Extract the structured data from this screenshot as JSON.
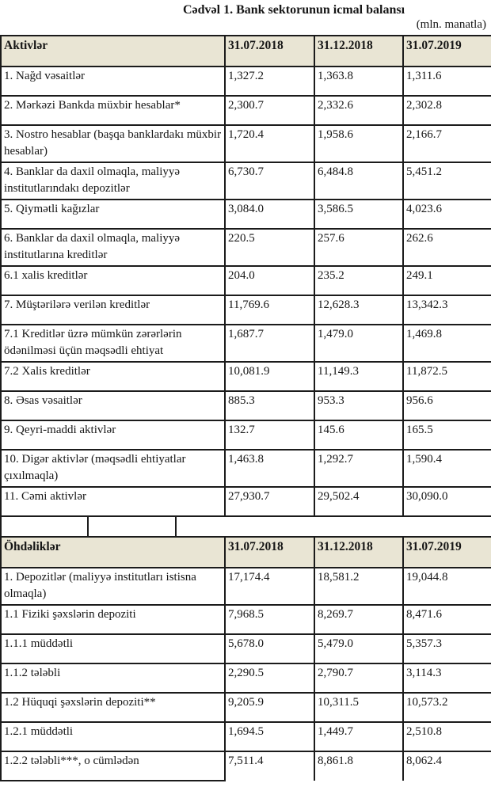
{
  "page": {
    "title": "Cədvəl 1. Bank sektorunun icmal balansı",
    "unit_note": "(mln. manatla)"
  },
  "columns": [
    "31.07.2018",
    "31.12.2018",
    "31.07.2019"
  ],
  "assets": {
    "header": "Aktivlər",
    "rows": [
      {
        "label": "1. Nağd vəsaitlər",
        "values": [
          "1,327.2",
          "1,363.8",
          "1,311.6"
        ]
      },
      {
        "label": "2. Mərkəzi Bankda müxbir hesablar*",
        "values": [
          "2,300.7",
          "2,332.6",
          "2,302.8"
        ]
      },
      {
        "label": "3. Nostro hesablar (başqa banklardakı müxbir hesablar)",
        "values": [
          "1,720.4",
          "1,958.6",
          "2,166.7"
        ]
      },
      {
        "label": "4. Banklar da daxil olmaqla, maliyyə institutlarındakı depozitlər",
        "values": [
          "6,730.7",
          "6,484.8",
          "5,451.2"
        ]
      },
      {
        "label": "5. Qiymətli kağızlar",
        "values": [
          "3,084.0",
          "3,586.5",
          "4,023.6"
        ]
      },
      {
        "label": "6. Banklar da daxil olmaqla, maliyyə institutlarına kreditlər",
        "values": [
          "220.5",
          "257.6",
          "262.6"
        ]
      },
      {
        "label": "6.1 xalis kreditlər",
        "values": [
          "204.0",
          "235.2",
          "249.1"
        ]
      },
      {
        "label": "7. Müştərilərə verilən kreditlər",
        "values": [
          "11,769.6",
          "12,628.3",
          "13,342.3"
        ]
      },
      {
        "label": "7.1 Kreditlər üzrə mümkün zərərlərin ödənilməsi üçün məqsədli ehtiyat",
        "values": [
          "1,687.7",
          "1,479.0",
          "1,469.8"
        ]
      },
      {
        "label": "7.2 Xalis kreditlər",
        "values": [
          "10,081.9",
          "11,149.3",
          "11,872.5"
        ]
      },
      {
        "label": "8. Əsas vəsaitlər",
        "values": [
          "885.3",
          "953.3",
          "956.6"
        ]
      },
      {
        "label": "9. Qeyri-maddi aktivlər",
        "values": [
          "132.7",
          "145.6",
          "165.5"
        ]
      },
      {
        "label": "10. Digər aktivlər (məqsədli ehtiyatlar çıxılmaqla)",
        "values": [
          "1,463.8",
          "1,292.7",
          "1,590.4"
        ]
      },
      {
        "label": "11. Cəmi aktivlər",
        "values": [
          "27,930.7",
          "29,502.4",
          "30,090.0"
        ]
      }
    ]
  },
  "liabilities": {
    "header": "Öhdəliklər",
    "rows": [
      {
        "label": "1. Depozitlər (maliyyə institutları istisna olmaqla)",
        "values": [
          "17,174.4",
          "18,581.2",
          "19,044.8"
        ]
      },
      {
        "label": "1.1 Fiziki şəxslərin depoziti",
        "values": [
          "7,968.5",
          "8,269.7",
          "8,471.6"
        ]
      },
      {
        "label": "1.1.1 müddətli",
        "values": [
          "5,678.0",
          "5,479.0",
          "5,357.3"
        ]
      },
      {
        "label": "1.1.2 tələbli",
        "values": [
          "2,290.5",
          "2,790.7",
          "3,114.3"
        ]
      },
      {
        "label": "1.2 Hüquqi şəxslərin depoziti**",
        "values": [
          "9,205.9",
          "10,311.5",
          "10,573.2"
        ]
      },
      {
        "label": "1.2.1 müddətli",
        "values": [
          "1,694.5",
          "1,449.7",
          "2,510.8"
        ]
      },
      {
        "label": "1.2.2 tələbli***, o cümlədən",
        "values": [
          "7,511.4",
          "8,861.8",
          "8,062.4"
        ]
      }
    ]
  },
  "colors": {
    "header_bg": "#e9e5d4",
    "border": "#1b1b1b"
  }
}
